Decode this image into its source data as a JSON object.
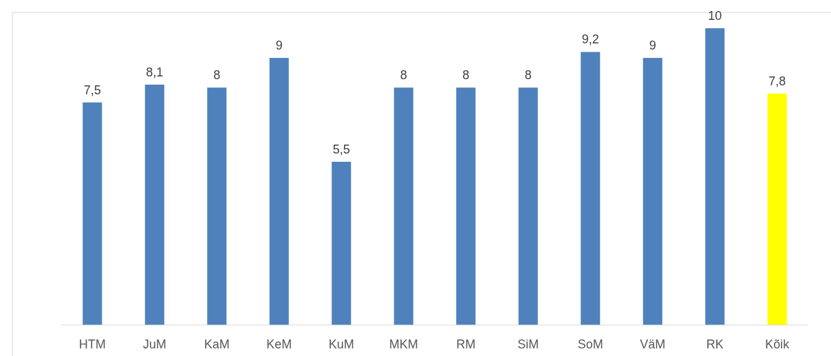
{
  "chart_data": {
    "type": "bar",
    "categories": [
      "HTM",
      "JuM",
      "KaM",
      "KeM",
      "KuM",
      "MKM",
      "RM",
      "SiM",
      "SoM",
      "VäM",
      "RK",
      "Kõik"
    ],
    "values": [
      7.5,
      8.1,
      8,
      9,
      5.5,
      8,
      8,
      8,
      9.2,
      9,
      10,
      7.8
    ],
    "colors": [
      "#4f81bd",
      "#4f81bd",
      "#4f81bd",
      "#4f81bd",
      "#4f81bd",
      "#4f81bd",
      "#4f81bd",
      "#4f81bd",
      "#4f81bd",
      "#4f81bd",
      "#4f81bd",
      "#ffff00"
    ],
    "value_labels": [
      "7,5",
      "8,1",
      "8",
      "9",
      "5,5",
      "8",
      "8",
      "8",
      "9,2",
      "9",
      "10",
      "7,8"
    ],
    "ylim": [
      0,
      10
    ],
    "tick_labels": "x"
  }
}
